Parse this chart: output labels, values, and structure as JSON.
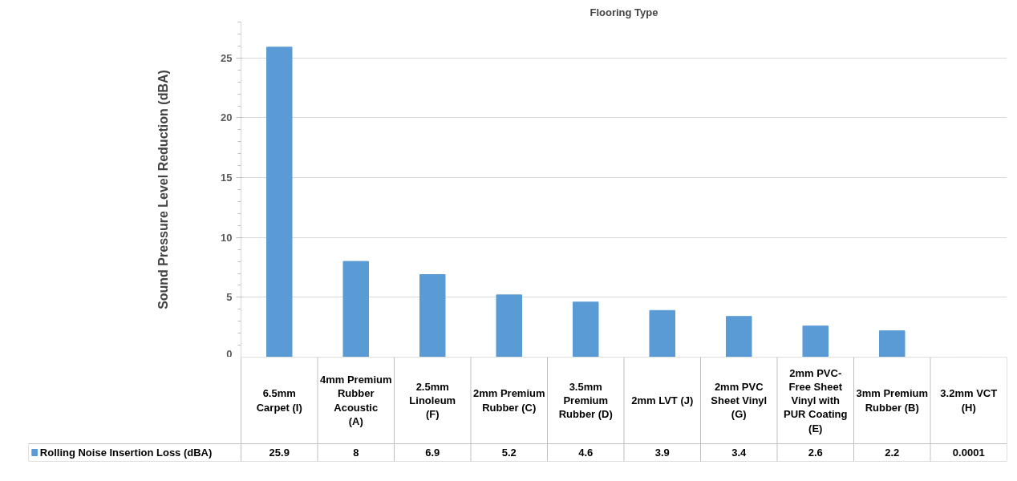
{
  "chart_data": {
    "type": "bar",
    "title": "Flooring Type",
    "ylabel": "Sound Pressure Level Reduction (dBA)",
    "categories": [
      "6.5mm Carpet (I)",
      "4mm Premium Rubber Acoustic (A)",
      "2.5mm Linoleum (F)",
      "2mm Premium Rubber (C)",
      "3.5mm Premium Rubber (D)",
      "2mm LVT (J)",
      "2mm PVC Sheet Vinyl (G)",
      "2mm PVC-Free Sheet Vinyl with PUR Coating (E)",
      "3mm Premium Rubber (B)",
      "3.2mm VCT (H)"
    ],
    "series": [
      {
        "name": "Rolling Noise Insertion Loss (dBA)",
        "color": "#5b9bd5",
        "values": [
          25.9,
          8,
          6.9,
          5.2,
          4.6,
          3.9,
          3.4,
          2.6,
          2.2,
          0.0001
        ]
      }
    ],
    "ylim": [
      0,
      28
    ],
    "yticks": [
      0,
      5,
      10,
      15,
      20,
      25
    ],
    "grid": "y",
    "legend": "bottom",
    "data_labels": true
  }
}
